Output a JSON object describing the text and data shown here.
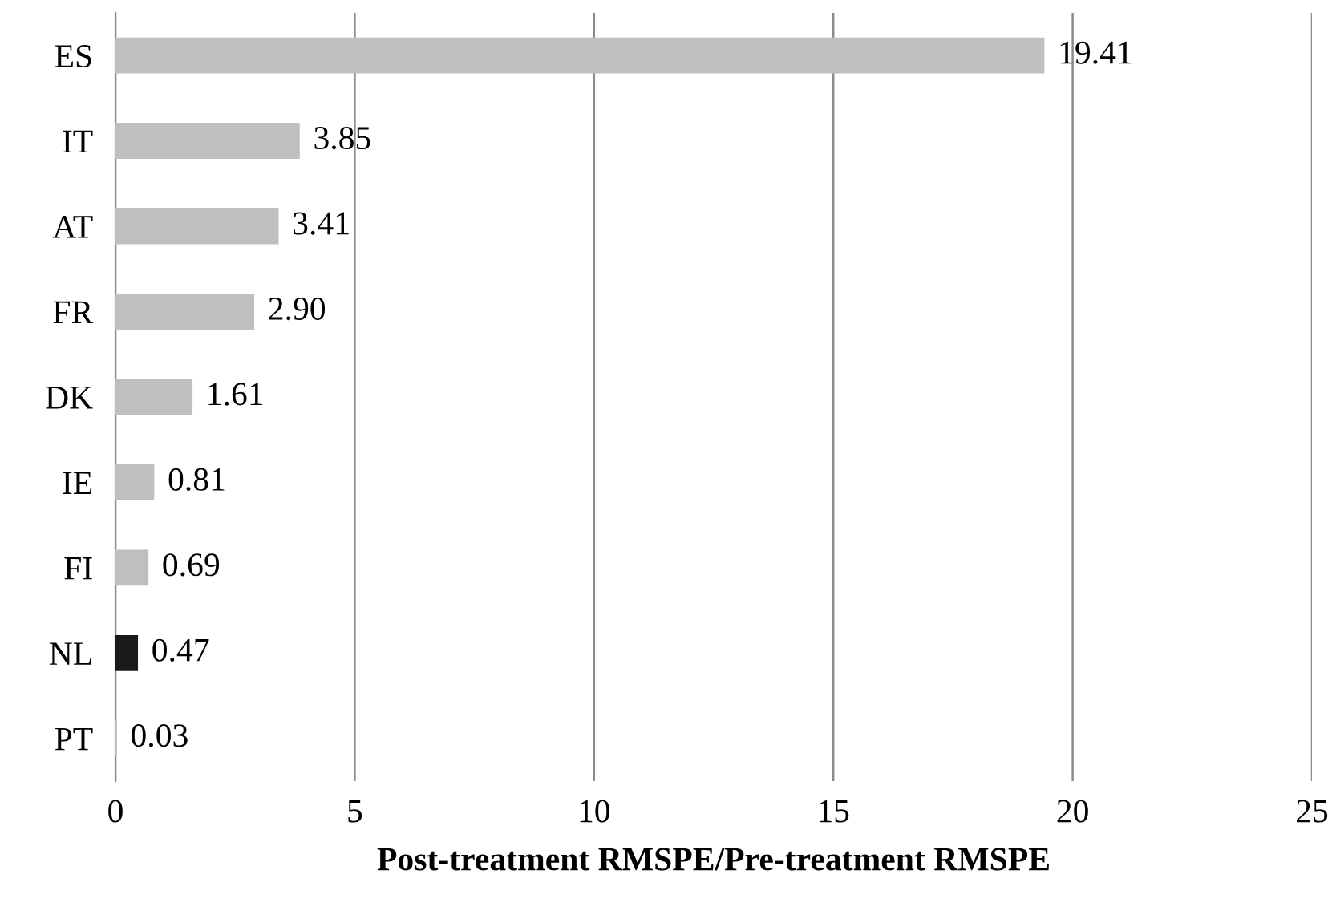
{
  "chart_data": {
    "type": "bar",
    "orientation": "horizontal",
    "xlabel": "Post-treatment RMSPE/Pre-treatment RMSPE",
    "categories": [
      "ES",
      "IT",
      "AT",
      "FR",
      "DK",
      "IE",
      "FI",
      "NL",
      "PT"
    ],
    "values": [
      19.41,
      3.85,
      3.41,
      2.9,
      1.61,
      0.81,
      0.69,
      0.47,
      0.03
    ],
    "colors": [
      "#bfbfbf",
      "#bfbfbf",
      "#bfbfbf",
      "#bfbfbf",
      "#bfbfbf",
      "#bfbfbf",
      "#bfbfbf",
      "#1a1a1a",
      "#bfbfbf"
    ],
    "value_labels": [
      "19.41",
      "3.85",
      "3.41",
      "2.90",
      "1.61",
      "0.81",
      "0.69",
      "0.47",
      "0.03"
    ],
    "xlim": [
      0,
      25
    ],
    "xticks": [
      0,
      5,
      10,
      15,
      20,
      25
    ],
    "grid": "x",
    "legend": false
  }
}
